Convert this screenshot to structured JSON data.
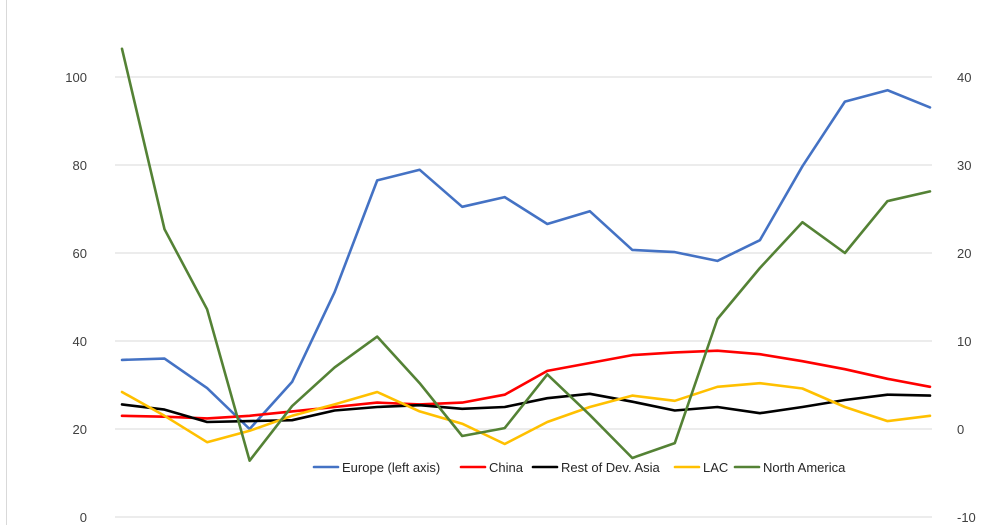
{
  "chart_data": {
    "type": "line",
    "title": "",
    "xlabel": "",
    "ylabel": "",
    "ylim_left": [
      0,
      110
    ],
    "ylim_right": [
      -10,
      45
    ],
    "yticks_left": [
      "0",
      "20",
      "40",
      "60",
      "80",
      "100"
    ],
    "yticks_right": [
      "-10",
      "0",
      "10",
      "20",
      "30",
      "40"
    ],
    "grid": true,
    "legend_position": "bottom-inside",
    "series": [
      {
        "name": "Europe (left axis)",
        "axis": "left",
        "color": "#4472C4",
        "values": [
          35.7,
          36.0,
          29.3,
          20.0,
          30.7,
          51.1,
          76.5,
          78.9,
          70.5,
          72.7,
          66.6,
          69.5,
          60.7,
          60.2,
          58.2,
          62.9,
          79.7,
          94.4,
          97.0,
          93.1
        ]
      },
      {
        "name": "China",
        "axis": "right",
        "color": "#FF0000",
        "values": [
          1.5,
          1.4,
          1.2,
          1.5,
          2.0,
          2.5,
          3.0,
          2.8,
          3.0,
          3.9,
          6.6,
          7.5,
          8.4,
          8.7,
          8.9,
          8.5,
          7.7,
          6.8,
          5.7,
          4.8
        ]
      },
      {
        "name": "Rest of Dev. Asia",
        "axis": "right",
        "color": "#000000",
        "values": [
          2.8,
          2.2,
          0.8,
          0.9,
          1.0,
          2.1,
          2.5,
          2.7,
          2.3,
          2.5,
          3.5,
          4.0,
          3.1,
          2.1,
          2.5,
          1.8,
          2.5,
          3.3,
          3.9,
          3.8
        ]
      },
      {
        "name": "LAC",
        "axis": "right",
        "color": "#FFC000",
        "values": [
          4.2,
          1.5,
          -1.5,
          -0.2,
          1.5,
          2.8,
          4.2,
          2.0,
          0.6,
          -1.7,
          0.8,
          2.5,
          3.8,
          3.2,
          4.8,
          5.2,
          4.6,
          2.5,
          0.9,
          1.5
        ]
      },
      {
        "name": "North America",
        "axis": "right",
        "color": "#548235",
        "values": [
          43.2,
          22.7,
          13.6,
          -3.6,
          2.6,
          7.0,
          10.5,
          5.2,
          -0.8,
          0.1,
          6.2,
          1.6,
          -3.3,
          -1.6,
          12.5,
          18.3,
          23.5,
          20.0,
          25.9,
          27.0
        ]
      }
    ]
  }
}
